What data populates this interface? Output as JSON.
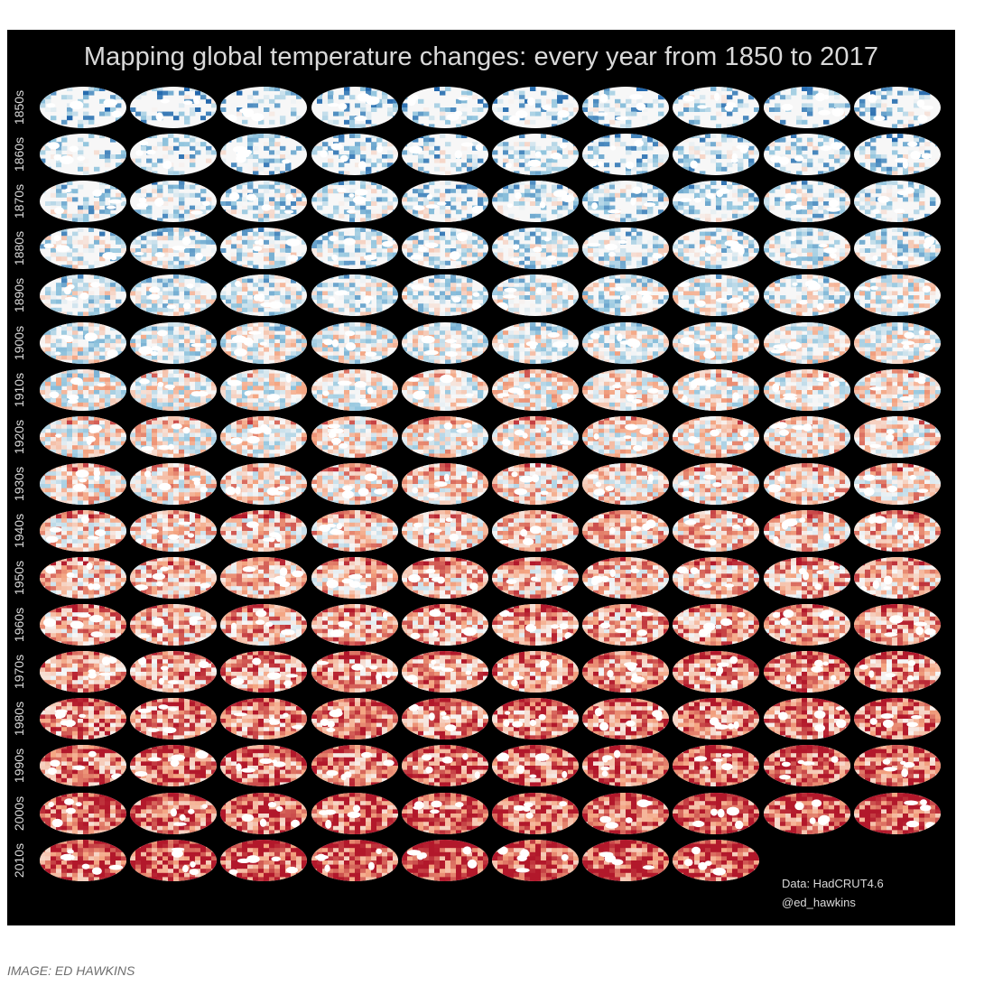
{
  "figure": {
    "title": "Mapping global temperature changes: every year from 1850 to 2017",
    "decades": [
      "1850s",
      "1860s",
      "1870s",
      "1880s",
      "1890s",
      "1900s",
      "1910s",
      "1920s",
      "1930s",
      "1940s",
      "1950s",
      "1960s",
      "1970s",
      "1980s",
      "1990s",
      "2000s",
      "2010s"
    ],
    "years_in_last_decade": 8,
    "data_source": "Data: HadCRUT4.6",
    "handle": "@ed_hawkins",
    "colors": {
      "background": "#000000",
      "warm": "#d6604d",
      "cool": "#4393c3",
      "neutral": "#f7f7f7"
    }
  },
  "caption": "IMAGE: ED HAWKINS"
}
